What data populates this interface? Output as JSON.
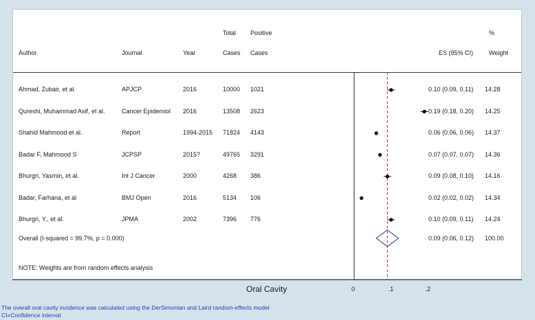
{
  "chart_data": {
    "type": "forest",
    "headers": {
      "author": "Author",
      "journal": "Journal",
      "year": "Year",
      "total": [
        "Total",
        "Cases"
      ],
      "positive": [
        "Positive",
        "Cases"
      ],
      "es": "ES (95% CI)",
      "weight": [
        "%",
        "Weight"
      ]
    },
    "studies": [
      {
        "author": "Ahmad, Zubair, et al.",
        "journal": "APJCP",
        "year": "2016",
        "total": "10000",
        "positive": "1021",
        "es": 0.1,
        "lo": 0.09,
        "hi": 0.11,
        "es_text": "0.10 (0.09, 0.11)",
        "weight": "14.28"
      },
      {
        "author": "Qureshi, Muhammad Asif, et al.",
        "journal": "Cancer Epidemiol",
        "year": "2016",
        "total": "13508",
        "positive": "2623",
        "es": 0.19,
        "lo": 0.18,
        "hi": 0.2,
        "es_text": "0.19 (0.18, 0.20)",
        "weight": "14.25"
      },
      {
        "author": "Shahid Mahmood et al.",
        "journal": "Report",
        "year": "1994-2015",
        "total": "71824",
        "positive": "4143",
        "es": 0.06,
        "lo": 0.06,
        "hi": 0.06,
        "es_text": "0.06 (0.06, 0.06)",
        "weight": "14.37"
      },
      {
        "author": "Badar F, Mahmood S",
        "journal": "JCPSP",
        "year": "2015?",
        "total": "49765",
        "positive": "3291",
        "es": 0.07,
        "lo": 0.07,
        "hi": 0.07,
        "es_text": "0.07 (0.07, 0.07)",
        "weight": "14.36"
      },
      {
        "author": "Bhurgri, Yasmin, et al.",
        "journal": "Int J Cancer",
        "year": "2000",
        "total": "4268",
        "positive": "386",
        "es": 0.09,
        "lo": 0.08,
        "hi": 0.1,
        "es_text": "0.09 (0.08, 0.10)",
        "weight": "14.16"
      },
      {
        "author": "Badar, Farhana, et al",
        "journal": "BMJ Open",
        "year": "2016",
        "total": "5134",
        "positive": "106",
        "es": 0.02,
        "lo": 0.02,
        "hi": 0.02,
        "es_text": "0.02 (0.02, 0.02)",
        "weight": "14.34"
      },
      {
        "author": "Bhurgri, Y., et al.",
        "journal": "JPMA",
        "year": "2002",
        "total": "7396",
        "positive": "776",
        "es": 0.1,
        "lo": 0.09,
        "hi": 0.11,
        "es_text": "0.10 (0.09, 0.11)",
        "weight": "14.24"
      }
    ],
    "overall": {
      "label": "Overall  (I-squared = 99.7%, p = 0.000)",
      "es": 0.09,
      "lo": 0.06,
      "hi": 0.12,
      "es_text": "0.09 (0.06, 0.12)",
      "weight": "100.00"
    },
    "note": "NOTE: Weights are from random effects analysis",
    "xlabel": "Oral Cavity",
    "xticks": [
      0,
      0.1,
      0.2
    ],
    "xtick_labels": [
      "0",
      ".1",
      ".2"
    ],
    "xlim": [
      0,
      0.2
    ],
    "colors": {
      "overall_diamond": "#2a2aa0",
      "overall_line": "#b03030",
      "marker": "#000000"
    }
  },
  "footer": {
    "line1": "The overall oral cavity incidence was calculated using the DerSimonian and Laird random-effects model",
    "line2": "CI=Confidence interval"
  }
}
